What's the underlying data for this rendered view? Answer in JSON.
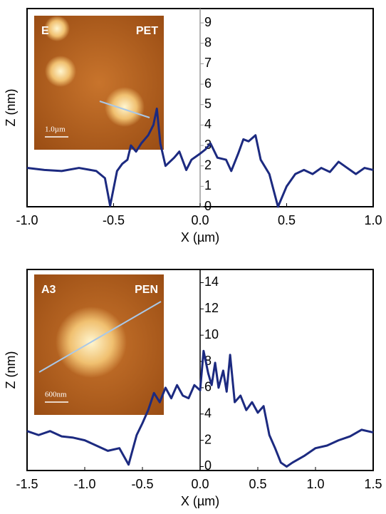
{
  "chart_data": [
    {
      "type": "line",
      "x_label": "X (µm)",
      "y_label": "Z (nm)",
      "annotations": [
        "E",
        "PET",
        "1.0µm"
      ],
      "x": [
        -1.0,
        -0.9,
        -0.8,
        -0.7,
        -0.6,
        -0.55,
        -0.52,
        -0.48,
        -0.45,
        -0.42,
        -0.4,
        -0.37,
        -0.34,
        -0.3,
        -0.27,
        -0.25,
        -0.23,
        -0.2,
        -0.15,
        -0.12,
        -0.08,
        -0.05,
        0.0,
        0.03,
        0.06,
        0.1,
        0.15,
        0.18,
        0.22,
        0.25,
        0.28,
        0.32,
        0.35,
        0.4,
        0.45,
        0.5,
        0.55,
        0.6,
        0.65,
        0.7,
        0.75,
        0.8,
        0.85,
        0.9,
        0.95,
        1.0
      ],
      "series": [
        {
          "color": "#1c2a80",
          "values": [
            1.9,
            1.8,
            1.75,
            1.9,
            1.75,
            1.4,
            0.05,
            1.75,
            2.1,
            2.3,
            3.0,
            2.7,
            3.1,
            3.5,
            4.0,
            4.8,
            3.1,
            2.0,
            2.4,
            2.7,
            1.8,
            2.3,
            2.6,
            2.8,
            3.1,
            2.4,
            2.3,
            1.75,
            2.6,
            3.3,
            3.2,
            3.5,
            2.3,
            1.6,
            0.0,
            1.0,
            1.6,
            1.8,
            1.6,
            1.9,
            1.7,
            2.2,
            1.9,
            1.6,
            1.9,
            1.8
          ]
        }
      ],
      "xlim": [
        -1.0,
        1.0
      ],
      "ylim": [
        0,
        9.7
      ],
      "xticks": [
        {
          "value": -1.0,
          "label": "-1.0"
        },
        -0.5,
        {
          "value": 0.0,
          "label": "0.0"
        },
        0.5,
        {
          "value": 1.0,
          "label": "1.0"
        }
      ],
      "yticks": [
        0,
        1,
        2,
        3,
        4,
        5,
        6,
        7,
        8,
        9
      ]
    },
    {
      "type": "line",
      "x_label": "X (µm)",
      "y_label": "Z (nm)",
      "annotations": [
        "A3",
        "PEN",
        "600nm"
      ],
      "x": [
        -1.5,
        -1.4,
        -1.3,
        -1.2,
        -1.1,
        -1.0,
        -0.9,
        -0.8,
        -0.7,
        -0.62,
        -0.55,
        -0.5,
        -0.45,
        -0.4,
        -0.35,
        -0.3,
        -0.25,
        -0.2,
        -0.15,
        -0.1,
        -0.05,
        0.0,
        0.03,
        0.07,
        0.1,
        0.13,
        0.16,
        0.2,
        0.23,
        0.26,
        0.3,
        0.35,
        0.4,
        0.45,
        0.5,
        0.55,
        0.6,
        0.65,
        0.7,
        0.75,
        0.8,
        0.9,
        1.0,
        1.1,
        1.2,
        1.3,
        1.4,
        1.5
      ],
      "series": [
        {
          "color": "#1c2a80",
          "values": [
            2.7,
            2.4,
            2.7,
            2.3,
            2.2,
            2.0,
            1.6,
            1.2,
            1.4,
            0.15,
            2.4,
            3.3,
            4.3,
            5.6,
            4.9,
            6.0,
            5.2,
            6.2,
            5.4,
            5.2,
            6.2,
            5.8,
            8.8,
            7.1,
            6.2,
            7.9,
            6.0,
            7.3,
            5.7,
            8.5,
            4.9,
            5.4,
            4.3,
            4.9,
            4.1,
            4.6,
            2.4,
            1.4,
            0.3,
            0.0,
            0.3,
            0.8,
            1.4,
            1.6,
            2.0,
            2.3,
            2.8,
            2.6
          ]
        }
      ],
      "xlim": [
        -1.5,
        1.5
      ],
      "ylim": [
        -0.3,
        15
      ],
      "xticks": [
        -1.5,
        {
          "value": -1.0,
          "label": "-1.0"
        },
        -0.5,
        {
          "value": 0.0,
          "label": "0.0"
        },
        0.5,
        {
          "value": 1.0,
          "label": "1.0"
        },
        1.5
      ],
      "yticks": [
        0,
        2,
        4,
        6,
        8,
        10,
        12,
        14
      ]
    }
  ]
}
